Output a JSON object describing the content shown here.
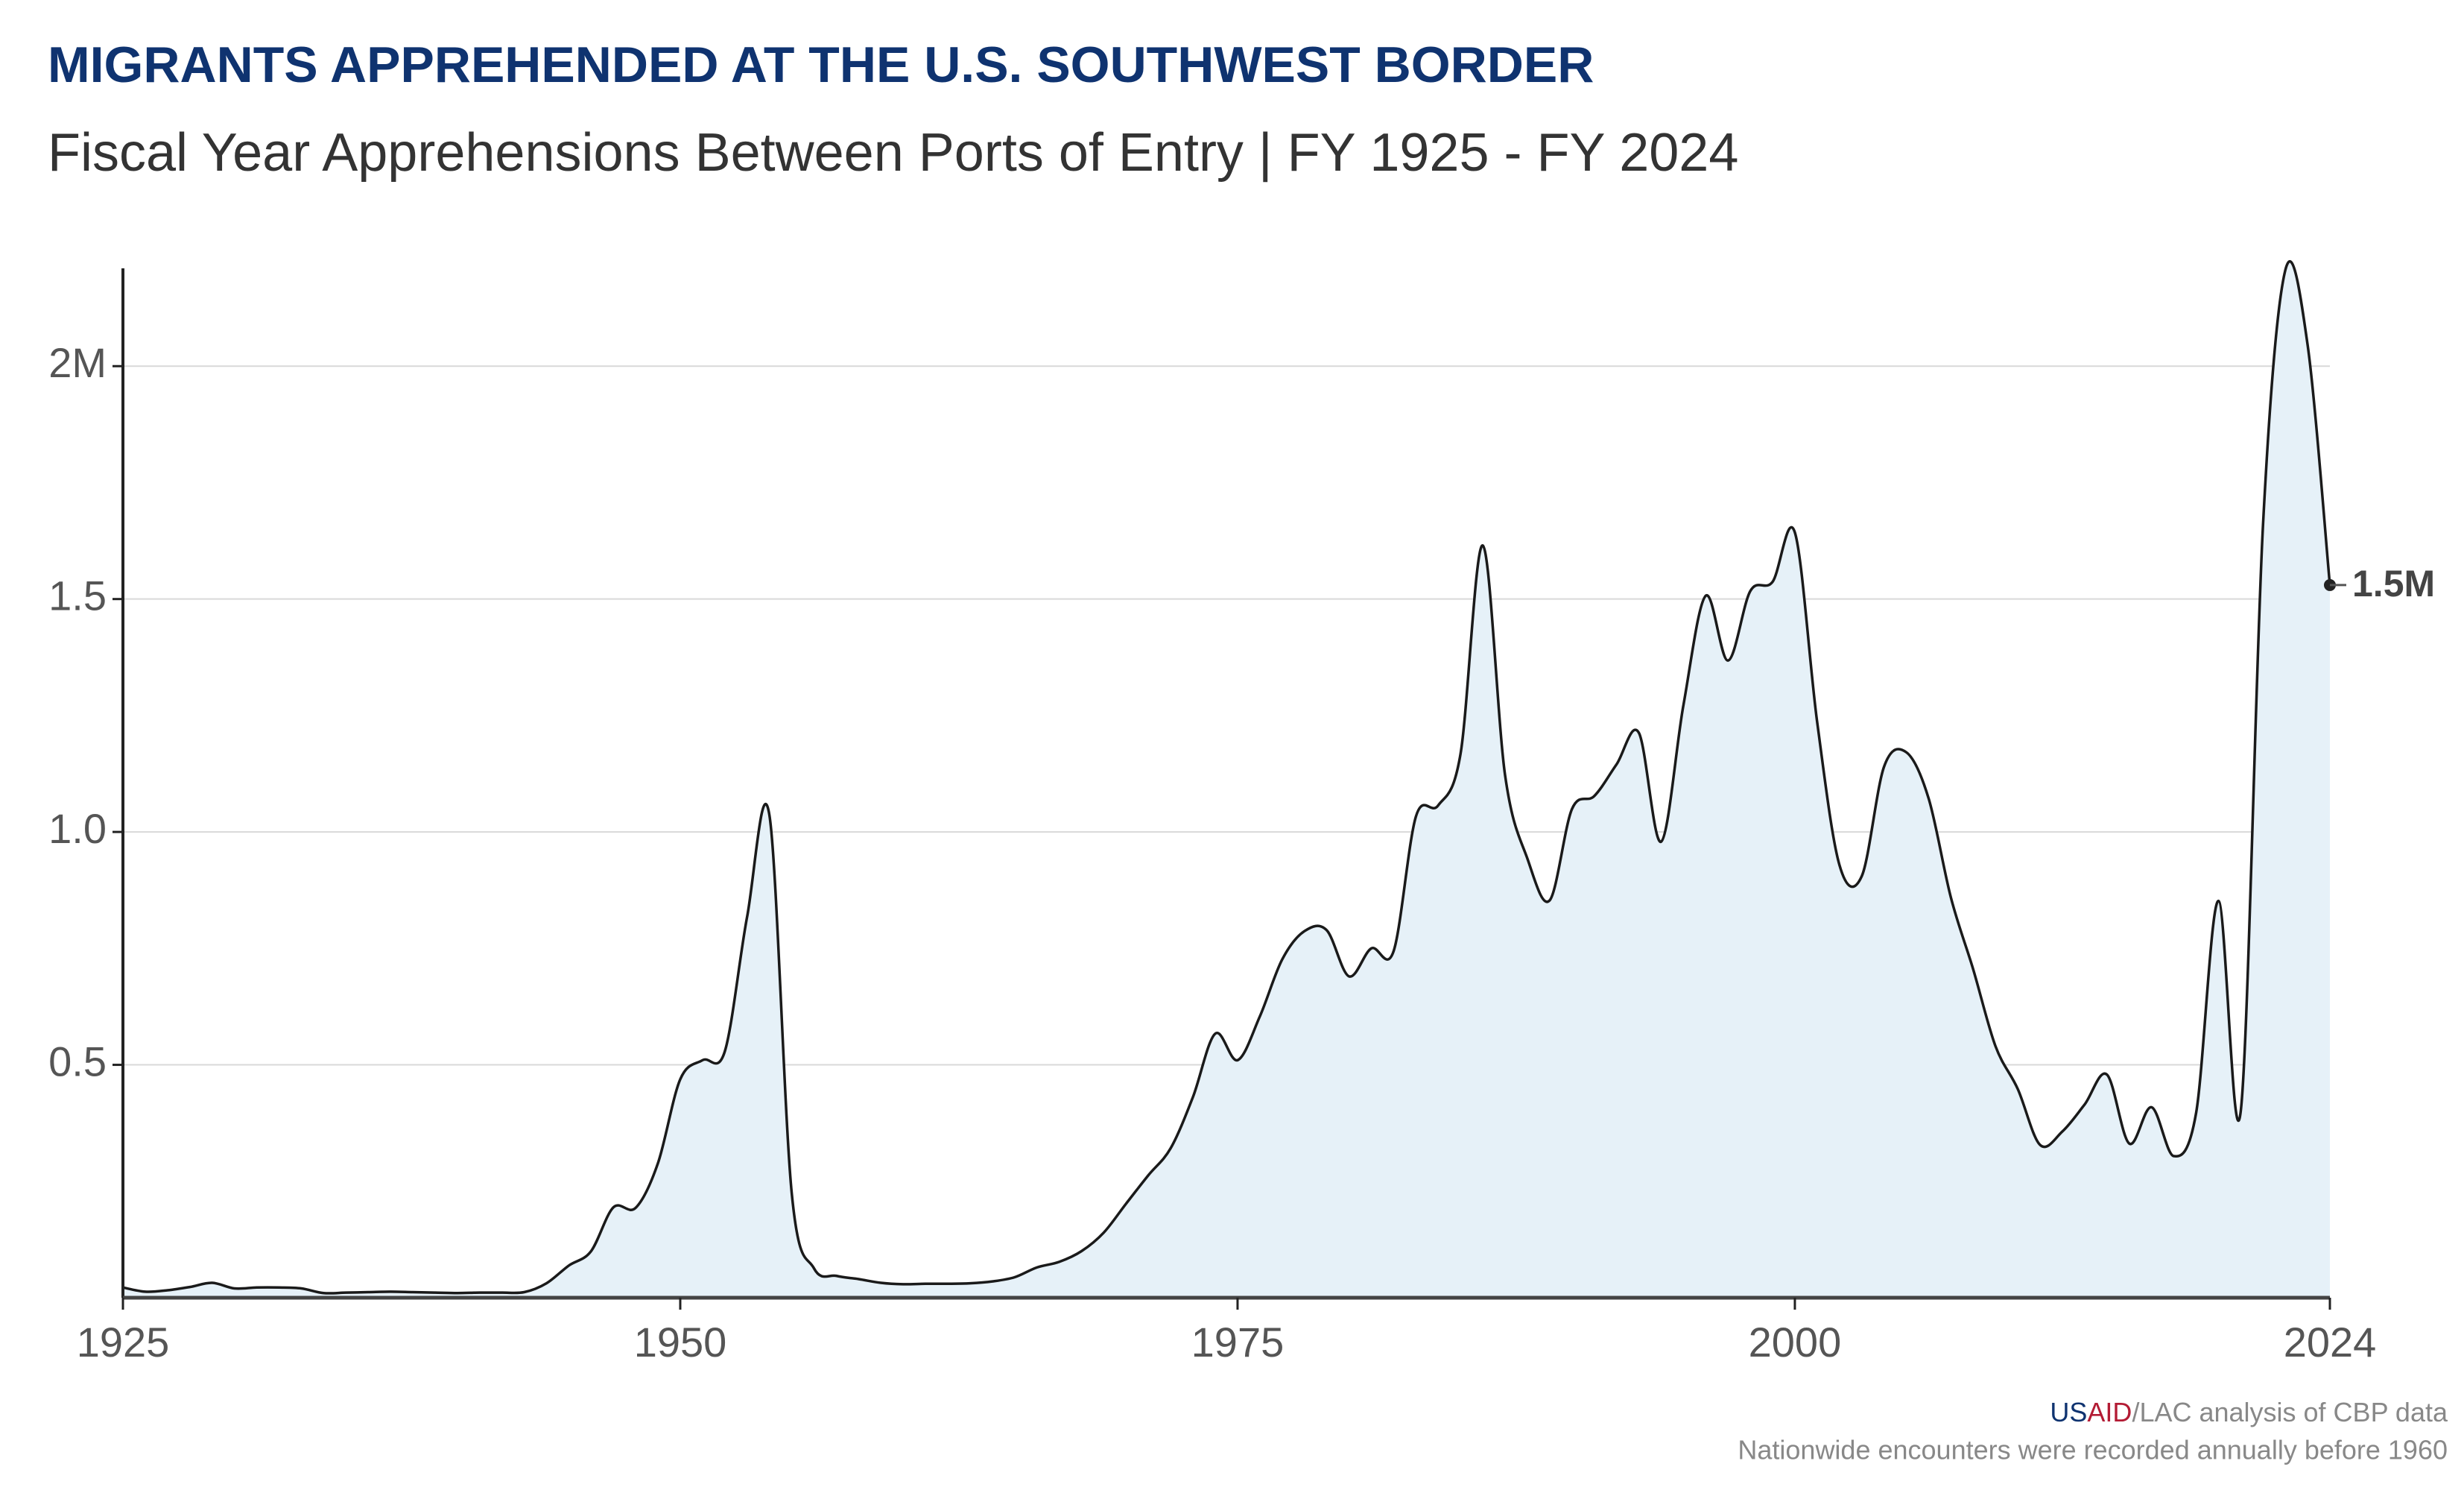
{
  "chart_data": {
    "type": "area",
    "title": "MIGRANTS APPREHENDED AT THE U.S. SOUTHWEST BORDER",
    "subtitle": "Fiscal Year Apprehensions Between Ports of Entry | FY 1925 - FY 2024",
    "x": [
      1925,
      1926,
      1927,
      1928,
      1929,
      1930,
      1931,
      1932,
      1933,
      1934,
      1935,
      1936,
      1937,
      1938,
      1939,
      1940,
      1941,
      1942,
      1943,
      1944,
      1945,
      1946,
      1947,
      1948,
      1949,
      1950,
      1951,
      1952,
      1953,
      1954,
      1955,
      1956,
      1957,
      1958,
      1959,
      1960,
      1961,
      1962,
      1963,
      1964,
      1965,
      1966,
      1967,
      1968,
      1969,
      1970,
      1971,
      1972,
      1973,
      1974,
      1975,
      1976,
      1977,
      1978,
      1979,
      1980,
      1981,
      1982,
      1983,
      1984,
      1985,
      1986,
      1987,
      1988,
      1989,
      1990,
      1991,
      1992,
      1993,
      1994,
      1995,
      1996,
      1997,
      1998,
      1999,
      2000,
      2001,
      2002,
      2003,
      2004,
      2005,
      2006,
      2007,
      2008,
      2009,
      2010,
      2011,
      2012,
      2013,
      2014,
      2015,
      2016,
      2017,
      2018,
      2019,
      2020,
      2021,
      2022,
      2023,
      2024
    ],
    "series": [
      {
        "color": "#1a1a1a",
        "fill": "#e6f1f8",
        "values": [
          0.022,
          0.013,
          0.016,
          0.023,
          0.032,
          0.02,
          0.022,
          0.022,
          0.02,
          0.01,
          0.011,
          0.012,
          0.013,
          0.012,
          0.011,
          0.01,
          0.011,
          0.011,
          0.012,
          0.031,
          0.069,
          0.1,
          0.194,
          0.193,
          0.289,
          0.469,
          0.51,
          0.529,
          0.818,
          1.036,
          0.225,
          0.063,
          0.047,
          0.04,
          0.032,
          0.029,
          0.03,
          0.03,
          0.031,
          0.035,
          0.044,
          0.065,
          0.077,
          0.1,
          0.14,
          0.202,
          0.263,
          0.321,
          0.431,
          0.567,
          0.51,
          0.604,
          0.726,
          0.787,
          0.789,
          0.69,
          0.75,
          0.744,
          1.033,
          1.057,
          1.167,
          1.615,
          1.122,
          0.943,
          0.853,
          1.049,
          1.077,
          1.145,
          1.213,
          0.979,
          1.272,
          1.507,
          1.368,
          1.517,
          1.537,
          1.643,
          1.236,
          0.929,
          0.905,
          1.14,
          1.171,
          1.072,
          0.859,
          0.705,
          0.54,
          0.448,
          0.328,
          0.357,
          0.415,
          0.479,
          0.331,
          0.409,
          0.304,
          0.397,
          0.852,
          0.4,
          1.659,
          2.206,
          2.046,
          1.53
        ]
      }
    ],
    "end_label": "1.5M",
    "xlim": [
      1925,
      2024
    ],
    "xticks": [
      1925,
      1950,
      1975,
      2000,
      2024
    ],
    "ylim": [
      0,
      2.21
    ],
    "yticks": [
      0.5,
      1.5,
      {
        "value": 1,
        "label": "1.0"
      },
      {
        "value": 2,
        "label": "2M"
      }
    ],
    "grid": true,
    "source": {
      "us": "US",
      "aid": "AID",
      "rest": "/LAC analysis of CBP data"
    },
    "note": "Nationwide encounters were recorded annually before 1960"
  }
}
